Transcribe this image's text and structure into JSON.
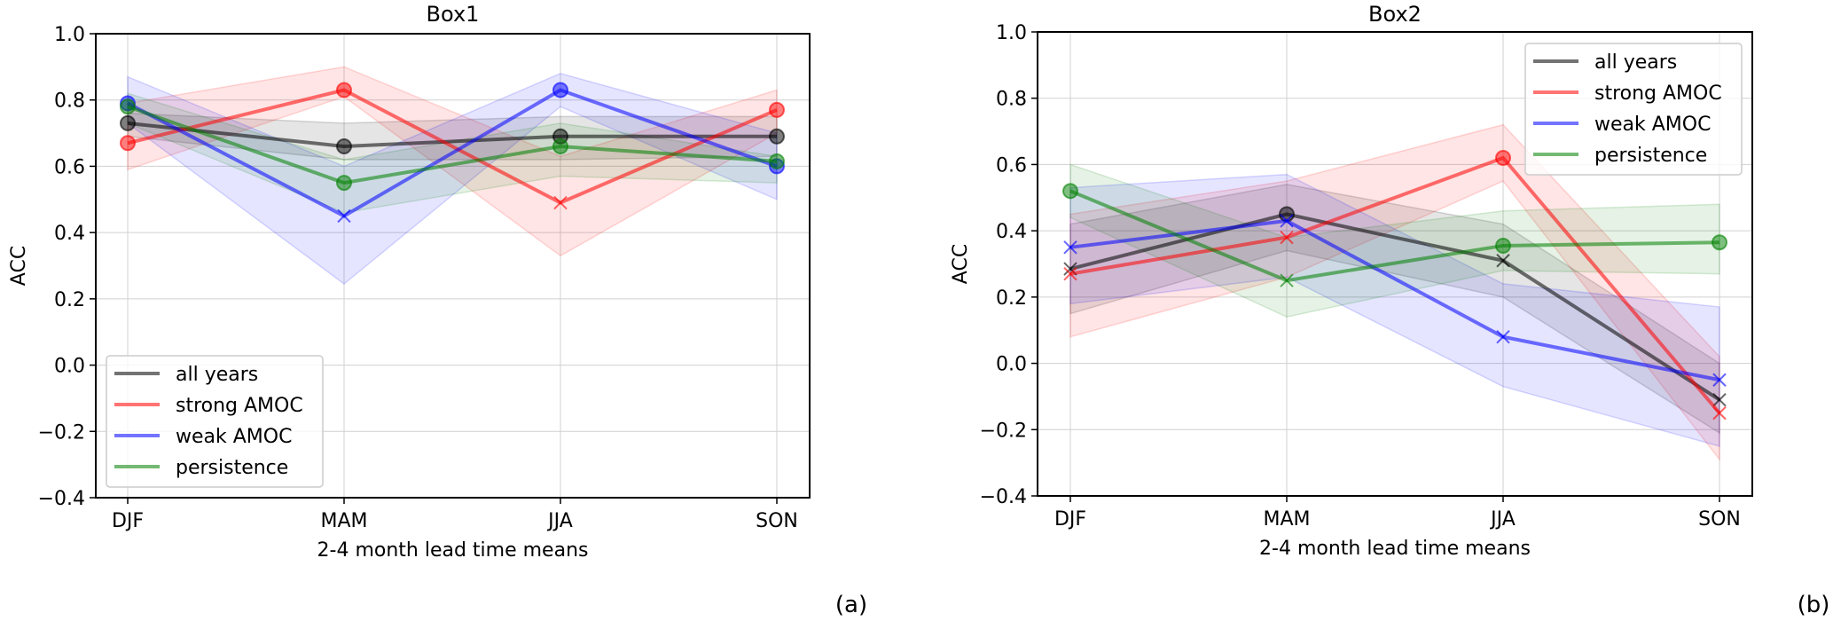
{
  "chart_data": [
    {
      "type": "line",
      "panel_label": "(a)",
      "title": "Box1",
      "xlabel": "2-4 month lead time means",
      "ylabel": "ACC",
      "categories": [
        "DJF",
        "MAM",
        "JJA",
        "SON"
      ],
      "ylim": [
        -0.4,
        1.0
      ],
      "yticks": [
        -0.4,
        -0.2,
        0.0,
        0.2,
        0.4,
        0.6,
        0.8,
        1.0
      ],
      "ytick_labels": [
        "−0.4",
        "−0.2",
        "0.0",
        "0.2",
        "0.4",
        "0.6",
        "0.8",
        "1.0"
      ],
      "grid": true,
      "legend_position": "lower-left",
      "series": [
        {
          "name": "all years",
          "color": "#000000",
          "values": [
            0.73,
            0.66,
            0.69,
            0.69
          ],
          "lower": [
            0.69,
            0.62,
            0.62,
            0.63
          ],
          "upper": [
            0.76,
            0.73,
            0.75,
            0.75
          ],
          "markers": [
            "o",
            "o",
            "o",
            "o"
          ]
        },
        {
          "name": "strong AMOC",
          "color": "#ff0000",
          "values": [
            0.67,
            0.83,
            0.49,
            0.77
          ],
          "lower": [
            0.59,
            0.81,
            0.33,
            0.7
          ],
          "upper": [
            0.79,
            0.9,
            0.63,
            0.83
          ],
          "markers": [
            "o",
            "o",
            "x",
            "o"
          ]
        },
        {
          "name": "weak AMOC",
          "color": "#0000ff",
          "values": [
            0.79,
            0.45,
            0.83,
            0.6
          ],
          "lower": [
            0.73,
            0.245,
            0.78,
            0.5
          ],
          "upper": [
            0.87,
            0.6,
            0.88,
            0.7
          ],
          "markers": [
            "o",
            "x",
            "o",
            "o"
          ]
        },
        {
          "name": "persistence",
          "color": "#008000",
          "values": [
            0.78,
            0.55,
            0.66,
            0.615
          ],
          "lower": [
            0.73,
            0.46,
            0.57,
            0.55
          ],
          "upper": [
            0.82,
            0.62,
            0.73,
            0.63
          ],
          "markers": [
            "o",
            "o",
            "o",
            "o"
          ]
        }
      ]
    },
    {
      "type": "line",
      "panel_label": "(b)",
      "title": "Box2",
      "xlabel": "2-4 month lead time means",
      "ylabel": "ACC",
      "categories": [
        "DJF",
        "MAM",
        "JJA",
        "SON"
      ],
      "ylim": [
        -0.4,
        1.0
      ],
      "yticks": [
        -0.4,
        -0.2,
        0.0,
        0.2,
        0.4,
        0.6,
        0.8,
        1.0
      ],
      "ytick_labels": [
        "−0.4",
        "−0.2",
        "0.0",
        "0.2",
        "0.4",
        "0.6",
        "0.8",
        "1.0"
      ],
      "grid": true,
      "legend_position": "upper-right",
      "series": [
        {
          "name": "all years",
          "color": "#000000",
          "values": [
            0.285,
            0.45,
            0.31,
            -0.11
          ],
          "lower": [
            0.15,
            0.34,
            0.2,
            -0.21
          ],
          "upper": [
            0.42,
            0.54,
            0.42,
            0.0
          ],
          "markers": [
            "x",
            "o",
            "x",
            "x"
          ]
        },
        {
          "name": "strong AMOC",
          "color": "#ff0000",
          "values": [
            0.27,
            0.38,
            0.62,
            -0.15
          ],
          "lower": [
            0.08,
            0.26,
            0.55,
            -0.29
          ],
          "upper": [
            0.45,
            0.55,
            0.72,
            0.02
          ],
          "markers": [
            "x",
            "x",
            "o",
            "x"
          ]
        },
        {
          "name": "weak AMOC",
          "color": "#0000ff",
          "values": [
            0.35,
            0.43,
            0.08,
            -0.05
          ],
          "lower": [
            0.18,
            0.26,
            -0.07,
            -0.25
          ],
          "upper": [
            0.53,
            0.57,
            0.24,
            0.17
          ],
          "markers": [
            "x",
            "x",
            "x",
            "x"
          ]
        },
        {
          "name": "persistence",
          "color": "#008000",
          "values": [
            0.52,
            0.25,
            0.355,
            0.365
          ],
          "lower": [
            0.44,
            0.14,
            0.28,
            0.27
          ],
          "upper": [
            0.6,
            0.38,
            0.46,
            0.48
          ],
          "markers": [
            "o",
            "x",
            "o",
            "o"
          ]
        }
      ]
    }
  ]
}
